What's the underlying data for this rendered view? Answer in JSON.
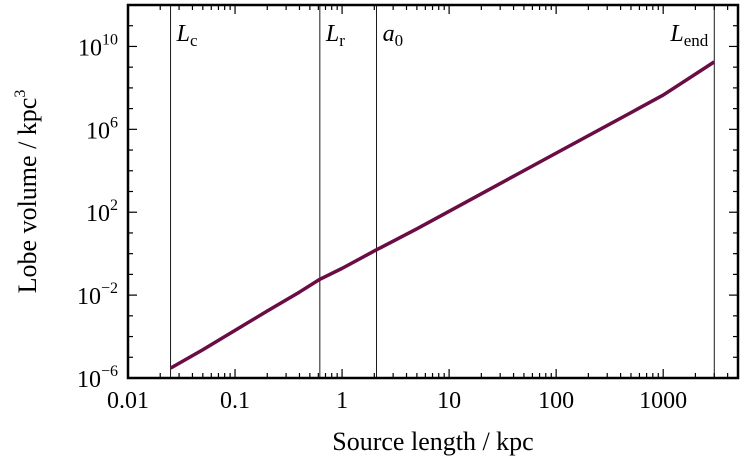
{
  "chart_data": {
    "type": "line",
    "xlabel": "Source length / kpc",
    "ylabel": "Lobe volume / kpc",
    "ylabel_sup": "3",
    "xscale": "log",
    "yscale": "log",
    "xlim": [
      0.01,
      5000
    ],
    "ylim": [
      1e-06,
      1000000000000.0
    ],
    "x_ticks": [
      {
        "value": 0.01,
        "label": "0.01"
      },
      {
        "value": 0.1,
        "label": "0.1"
      },
      {
        "value": 1,
        "label": "1"
      },
      {
        "value": 10,
        "label": "10"
      },
      {
        "value": 100,
        "label": "100"
      },
      {
        "value": 1000,
        "label": "1000"
      }
    ],
    "y_ticks": [
      {
        "value": 1e-06,
        "base": "10",
        "exp": "−6"
      },
      {
        "value": 0.01,
        "base": "10",
        "exp": "−2"
      },
      {
        "value": 100.0,
        "base": "10",
        "exp": "2"
      },
      {
        "value": 1000000.0,
        "base": "10",
        "exp": "6"
      },
      {
        "value": 10000000000.0,
        "base": "10",
        "exp": "10"
      }
    ],
    "grid": false,
    "series": [
      {
        "color": "#6b0d45",
        "x": [
          0.025,
          0.05,
          0.1,
          0.2,
          0.4,
          0.62,
          1.0,
          2.0,
          5.0,
          10,
          50,
          100,
          500,
          1000,
          3000
        ],
        "y": [
          3e-06,
          2.3e-05,
          0.0002,
          0.0017,
          0.014,
          0.058,
          0.195,
          1.35,
          15.9,
          111,
          10200.0,
          71000.0,
          6400000.0,
          45000000.0,
          1800000000.0
        ]
      }
    ],
    "markers": [
      {
        "x": 0.025,
        "main": "L",
        "sub": "c"
      },
      {
        "x": 0.62,
        "main": "L",
        "sub": "r"
      },
      {
        "x": 2.1,
        "main": "a",
        "sub": "0"
      },
      {
        "x": 3000,
        "main": "L",
        "sub": "end"
      }
    ]
  }
}
